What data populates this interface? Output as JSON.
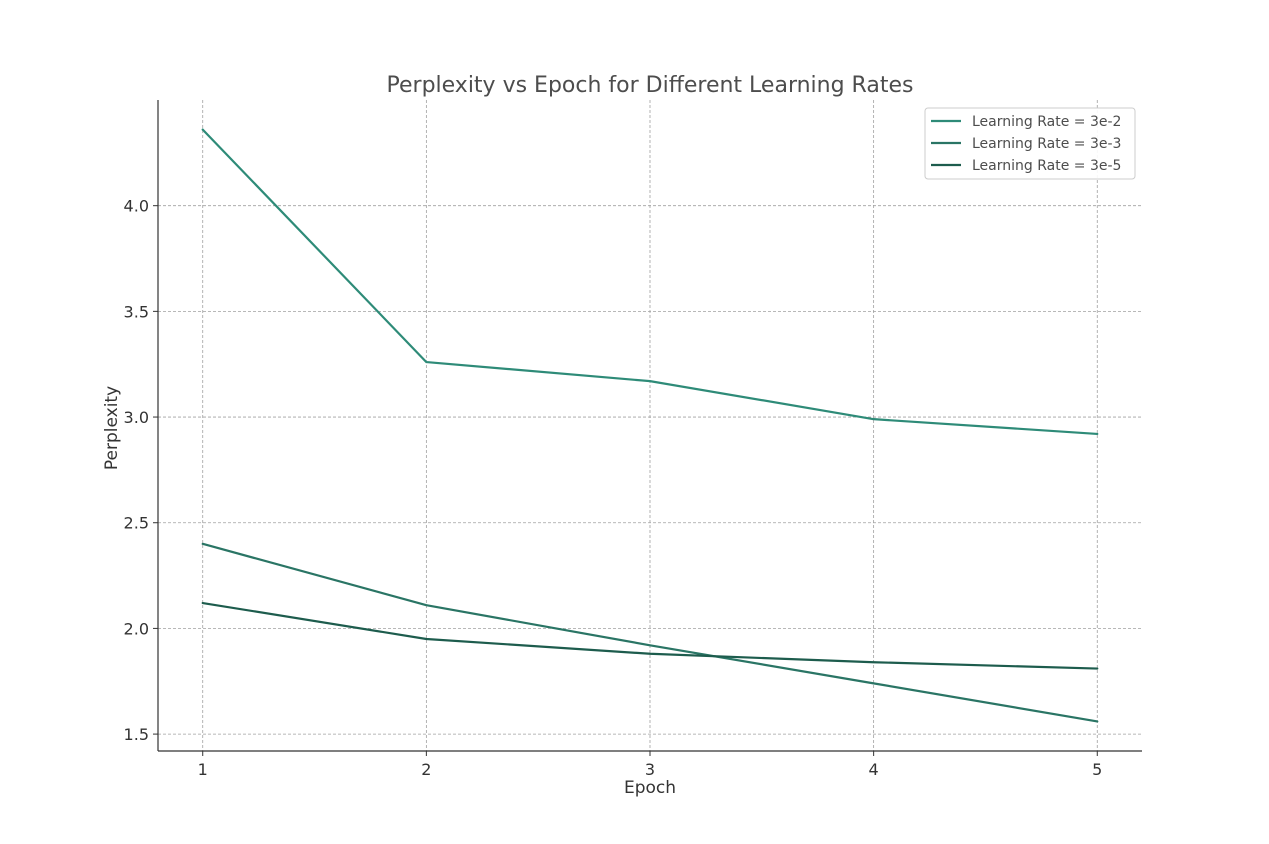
{
  "chart_data": {
    "type": "line",
    "title": "Perplexity vs Epoch for Different Learning Rates",
    "xlabel": "Epoch",
    "ylabel": "Perplexity",
    "x": [
      1,
      2,
      3,
      4,
      5
    ],
    "xlim": [
      0.8,
      5.2
    ],
    "ylim": [
      1.42,
      4.5
    ],
    "xticks": [
      1,
      2,
      3,
      4,
      5
    ],
    "yticks": [
      1.5,
      2.0,
      2.5,
      3.0,
      3.5,
      4.0
    ],
    "ytick_labels": [
      "1.5",
      "2.0",
      "2.5",
      "3.0",
      "3.5",
      "4.0"
    ],
    "grid": true,
    "legend_position": "top-right",
    "series": [
      {
        "name": "Learning Rate = 3e-2",
        "color": "#2e8b78",
        "values": [
          4.36,
          3.26,
          3.17,
          2.99,
          2.92
        ]
      },
      {
        "name": "Learning Rate = 3e-3",
        "color": "#2a7565",
        "values": [
          2.4,
          2.11,
          1.92,
          1.74,
          1.56
        ]
      },
      {
        "name": "Learning Rate = 3e-5",
        "color": "#1d5c4d",
        "values": [
          2.12,
          1.95,
          1.88,
          1.84,
          1.81
        ]
      }
    ]
  }
}
